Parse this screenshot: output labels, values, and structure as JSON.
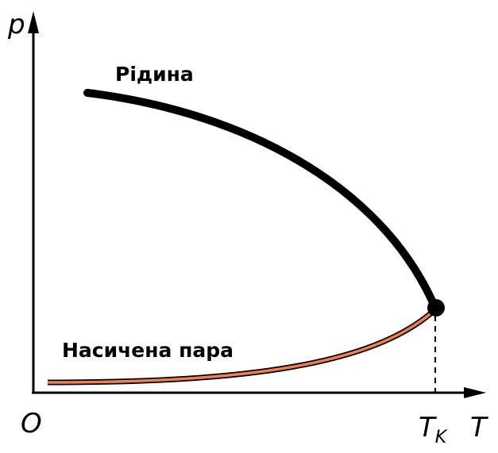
{
  "axes": {
    "y_label": "p",
    "x_label": "T",
    "origin": "O",
    "critical": {
      "main": "T",
      "sub": "K"
    }
  },
  "curves": {
    "liquid": "Рідина",
    "vapor": "Насичена пара"
  }
}
